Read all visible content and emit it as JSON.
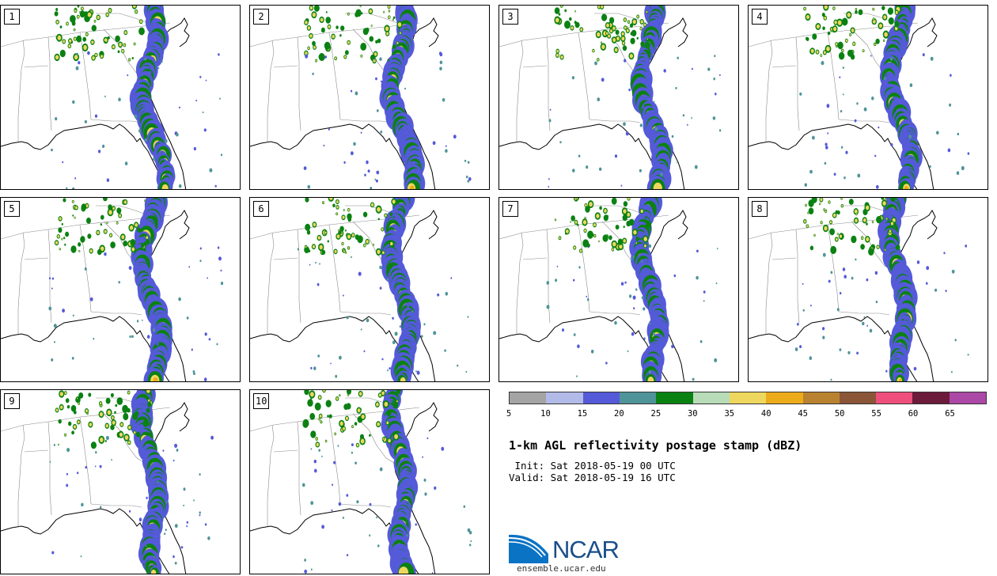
{
  "members": [
    {
      "label": "1",
      "seed": 11
    },
    {
      "label": "2",
      "seed": 23
    },
    {
      "label": "3",
      "seed": 37
    },
    {
      "label": "4",
      "seed": 41
    },
    {
      "label": "5",
      "seed": 53
    },
    {
      "label": "6",
      "seed": 67
    },
    {
      "label": "7",
      "seed": 71
    },
    {
      "label": "8",
      "seed": 89
    },
    {
      "label": "9",
      "seed": 97
    },
    {
      "label": "10",
      "seed": 103
    }
  ],
  "colorbar": {
    "ticks": [
      "5",
      "10",
      "15",
      "20",
      "25",
      "30",
      "35",
      "40",
      "45",
      "50",
      "55",
      "60",
      "65"
    ],
    "colors": [
      "#a4a4a4",
      "#b2bbe8",
      "#545ad8",
      "#4f9498",
      "#0b8113",
      "#b8dcb8",
      "#eed75e",
      "#ecab1b",
      "#b98230",
      "#8b5638",
      "#ef4f7b",
      "#6c1b3a",
      "#ac48a6"
    ]
  },
  "title": "1-km AGL reflectivity postage stamp (dBZ)",
  "init": " Init: Sat 2018-05-19 00 UTC",
  "valid": "Valid: Sat 2018-05-19 16 UTC",
  "logo": {
    "name": "NCAR",
    "url": "ensemble.ucar.edu"
  }
}
